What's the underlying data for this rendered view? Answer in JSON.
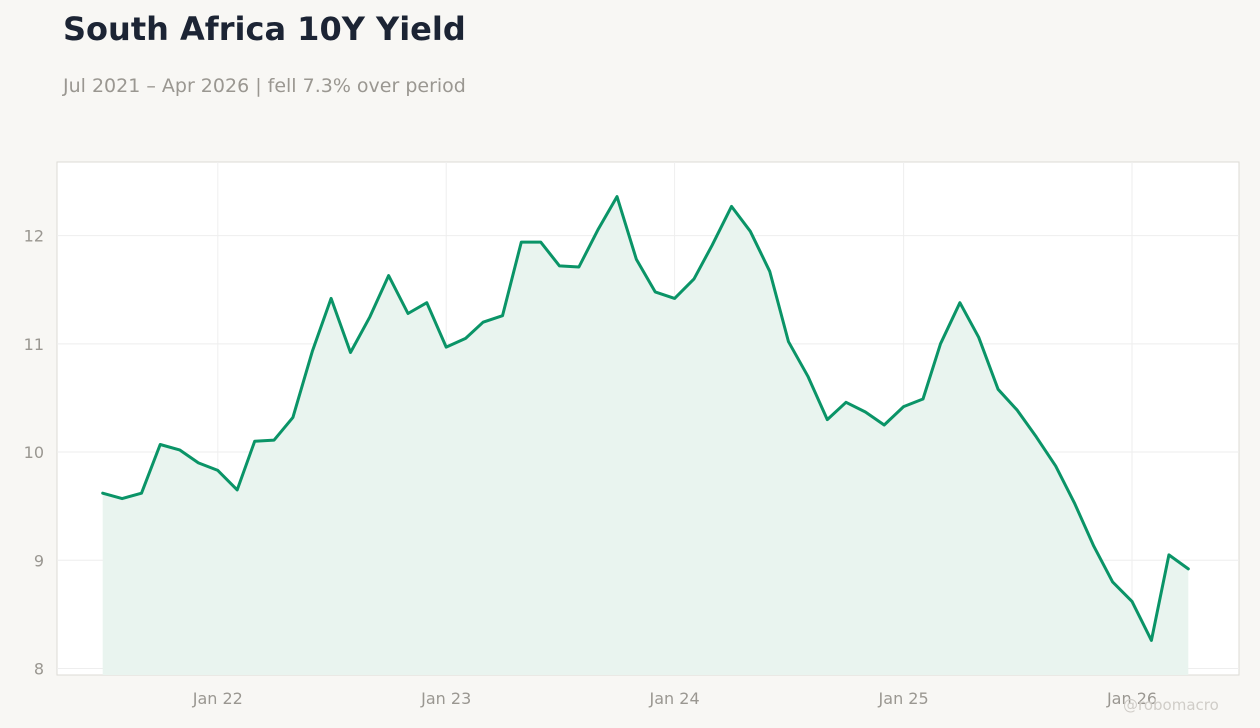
{
  "header": {
    "title": "South Africa 10Y Yield",
    "subtitle": "Jul 2021 – Apr 2026 | fell 7.3% over period"
  },
  "watermark": "@robomacro",
  "colors": {
    "line": "#0a9467",
    "fill": "#e9f4ef",
    "background": "#f8f7f4",
    "plot_background": "#ffffff",
    "grid": "#eeeeee",
    "text_muted": "#9a9791",
    "title": "#1c2434"
  },
  "chart_data": {
    "type": "area",
    "title": "South Africa 10Y Yield",
    "subtitle": "Jul 2021 – Apr 2026 | fell 7.3% over period",
    "xlabel": "",
    "ylabel": "",
    "ylim": [
      7.94,
      12.68
    ],
    "xlim": [
      "2021-04-19",
      "2026-06-21"
    ],
    "grid": true,
    "legend": "none",
    "yticks": [
      8,
      9,
      10,
      11,
      12
    ],
    "xticks": [
      {
        "label": "Jan 22",
        "date": "2022-01-01"
      },
      {
        "label": "Jan 23",
        "date": "2023-01-01"
      },
      {
        "label": "Jan 24",
        "date": "2024-01-01"
      },
      {
        "label": "Jan 25",
        "date": "2025-01-01"
      },
      {
        "label": "Jan 26",
        "date": "2026-01-01"
      }
    ],
    "series": [
      {
        "x": [
          "2021-07-01",
          "2021-08-01",
          "2021-09-01",
          "2021-10-01",
          "2021-11-01",
          "2021-12-01",
          "2022-01-01",
          "2022-02-01",
          "2022-03-01",
          "2022-04-01",
          "2022-05-01",
          "2022-06-01",
          "2022-07-01",
          "2022-08-01",
          "2022-09-01",
          "2022-10-01",
          "2022-11-01",
          "2022-12-01",
          "2023-01-01",
          "2023-02-01",
          "2023-03-01",
          "2023-04-01",
          "2023-05-01",
          "2023-06-01",
          "2023-07-01",
          "2023-08-01",
          "2023-09-01",
          "2023-10-01",
          "2023-11-01",
          "2023-12-01",
          "2024-01-01",
          "2024-02-01",
          "2024-03-01",
          "2024-04-01",
          "2024-05-01",
          "2024-06-01",
          "2024-07-01",
          "2024-08-01",
          "2024-09-01",
          "2024-10-01",
          "2024-11-01",
          "2024-12-01",
          "2025-01-01",
          "2025-02-01",
          "2025-03-01",
          "2025-04-01",
          "2025-05-01",
          "2025-06-01",
          "2025-07-01",
          "2025-08-01",
          "2025-09-01",
          "2025-10-01",
          "2025-11-01",
          "2025-12-01",
          "2026-01-01",
          "2026-02-01",
          "2026-03-01",
          "2026-04-01"
        ],
        "values": [
          9.62,
          9.57,
          9.62,
          10.07,
          10.02,
          9.9,
          9.83,
          9.65,
          10.1,
          10.11,
          10.32,
          10.93,
          11.42,
          10.92,
          11.25,
          11.63,
          11.28,
          11.38,
          10.97,
          11.05,
          11.2,
          11.26,
          11.94,
          11.94,
          11.72,
          11.71,
          12.06,
          12.36,
          11.78,
          11.48,
          11.42,
          11.6,
          11.91,
          12.27,
          12.04,
          11.67,
          11.02,
          10.7,
          10.3,
          10.46,
          10.37,
          10.25,
          10.42,
          10.49,
          11.0,
          11.38,
          11.06,
          10.58,
          10.39,
          10.14,
          9.87,
          9.53,
          9.13,
          8.8,
          8.62,
          8.26,
          9.05,
          8.92
        ]
      }
    ]
  }
}
